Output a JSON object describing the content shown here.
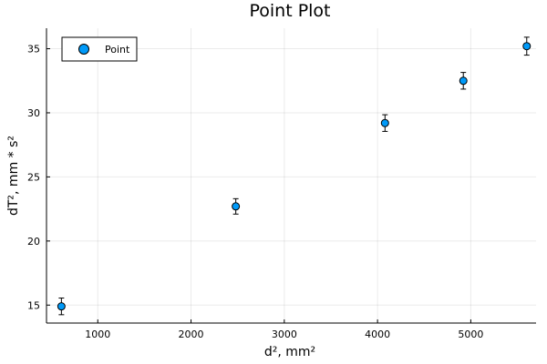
{
  "chart_data": {
    "type": "scatter",
    "title": "Point Plot",
    "xlabel": "d², mm²",
    "ylabel": "dT², mm * s²",
    "xlim": [
      450,
      5700
    ],
    "ylim": [
      13.6,
      36.6
    ],
    "xticks": [
      1000,
      2000,
      3000,
      4000,
      5000
    ],
    "yticks": [
      15,
      20,
      25,
      30,
      35
    ],
    "grid": true,
    "legend_position": "top-left",
    "series": [
      {
        "name": "Point",
        "color": "#009af9",
        "marker": "circle",
        "x": [
          610,
          2480,
          4080,
          4920,
          5600
        ],
        "y": [
          14.9,
          22.7,
          29.2,
          32.5,
          35.2
        ],
        "yerr": [
          0.65,
          0.6,
          0.65,
          0.65,
          0.7
        ]
      }
    ]
  }
}
